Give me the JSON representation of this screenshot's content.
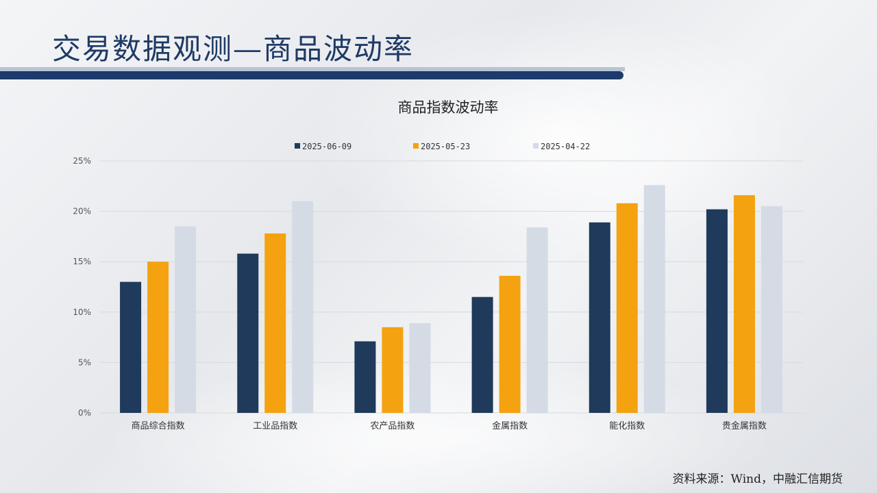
{
  "header": {
    "title": "交易数据观测—商品波动率"
  },
  "source_note": "资料来源：Wind，中融汇信期货",
  "chart_data": {
    "type": "bar",
    "title": "商品指数波动率",
    "categories": [
      "商品综合指数",
      "工业品指数",
      "农产品指数",
      "金属指数",
      "能化指数",
      "贵金属指数"
    ],
    "series": [
      {
        "name": "2025-06-09",
        "color": "#1f3a5a",
        "values": [
          13.0,
          15.8,
          7.1,
          11.5,
          18.9,
          20.2
        ]
      },
      {
        "name": "2025-05-23",
        "color": "#f4a20f",
        "values": [
          15.0,
          17.8,
          8.5,
          13.6,
          20.8,
          21.6
        ]
      },
      {
        "name": "2025-04-22",
        "color": "#d4dbe5",
        "values": [
          18.5,
          21.0,
          8.9,
          18.4,
          22.6,
          20.5
        ]
      }
    ],
    "y_ticks": [
      "0%",
      "5%",
      "10%",
      "15%",
      "20%",
      "25%"
    ],
    "ylim": [
      0,
      25
    ],
    "ylabel": "",
    "xlabel": "",
    "grid": true,
    "legend_position": "top"
  }
}
